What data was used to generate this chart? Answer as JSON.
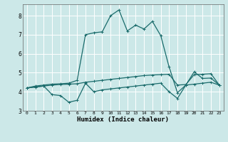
{
  "xlabel": "Humidex (Indice chaleur)",
  "xlim": [
    -0.5,
    23.5
  ],
  "ylim": [
    3.0,
    8.6
  ],
  "yticks": [
    3,
    4,
    5,
    6,
    7,
    8
  ],
  "xticks": [
    0,
    1,
    2,
    3,
    4,
    5,
    6,
    7,
    8,
    9,
    10,
    11,
    12,
    13,
    14,
    15,
    16,
    17,
    18,
    19,
    20,
    21,
    22,
    23
  ],
  "bg_color": "#cce8e8",
  "line_color": "#1a6b6b",
  "grid_color": "#ffffff",
  "line1_x": [
    0,
    1,
    2,
    3,
    4,
    5,
    6,
    7,
    8,
    9,
    10,
    11,
    12,
    13,
    14,
    15,
    16,
    17,
    18,
    19,
    20,
    21,
    22,
    23
  ],
  "line1_y": [
    4.2,
    4.25,
    4.3,
    3.85,
    3.8,
    3.45,
    3.55,
    4.45,
    4.0,
    4.1,
    4.15,
    4.2,
    4.25,
    4.3,
    4.35,
    4.4,
    4.45,
    4.0,
    3.65,
    4.35,
    4.4,
    4.45,
    4.5,
    4.35
  ],
  "line2_x": [
    0,
    1,
    2,
    3,
    4,
    5,
    6,
    7,
    8,
    9,
    10,
    11,
    12,
    13,
    14,
    15,
    16,
    17,
    18,
    19,
    20,
    21,
    22,
    23
  ],
  "line2_y": [
    4.2,
    4.25,
    4.3,
    4.35,
    4.38,
    4.4,
    4.42,
    4.5,
    4.55,
    4.6,
    4.65,
    4.7,
    4.75,
    4.8,
    4.85,
    4.88,
    4.9,
    4.92,
    4.35,
    4.38,
    4.9,
    4.92,
    4.95,
    4.35
  ],
  "line3_x": [
    0,
    1,
    2,
    3,
    4,
    5,
    6,
    7,
    8,
    9,
    10,
    11,
    12,
    13,
    14,
    15,
    16,
    17,
    18,
    19,
    20,
    21,
    22,
    23
  ],
  "line3_y": [
    4.2,
    4.3,
    4.35,
    4.4,
    4.42,
    4.45,
    4.6,
    7.0,
    7.1,
    7.15,
    8.0,
    8.3,
    7.2,
    7.5,
    7.3,
    7.7,
    6.95,
    5.3,
    3.95,
    4.35,
    5.05,
    4.7,
    4.72,
    4.35
  ]
}
